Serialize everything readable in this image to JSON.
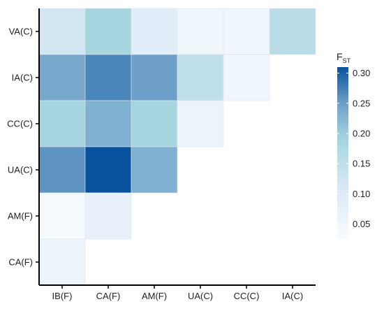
{
  "chart_data": {
    "type": "heatmap",
    "title": "",
    "xlabel": "",
    "ylabel": "",
    "x_categories": [
      "IB(F)",
      "CA(F)",
      "AM(F)",
      "UA(C)",
      "CC(C)",
      "IA(C)"
    ],
    "y_categories": [
      "VA(C)",
      "IA(C)",
      "CC(C)",
      "UA(C)",
      "AM(F)",
      "CA(F)"
    ],
    "cells": [
      {
        "x": "IB(F)",
        "y": "VA(C)",
        "value": 0.12
      },
      {
        "x": "CA(F)",
        "y": "VA(C)",
        "value": 0.19
      },
      {
        "x": "AM(F)",
        "y": "VA(C)",
        "value": 0.09
      },
      {
        "x": "UA(C)",
        "y": "VA(C)",
        "value": 0.05
      },
      {
        "x": "CC(C)",
        "y": "VA(C)",
        "value": 0.05
      },
      {
        "x": "IA(C)",
        "y": "VA(C)",
        "value": 0.16
      },
      {
        "x": "IB(F)",
        "y": "IA(C)",
        "value": 0.24
      },
      {
        "x": "CA(F)",
        "y": "IA(C)",
        "value": 0.27
      },
      {
        "x": "AM(F)",
        "y": "IA(C)",
        "value": 0.25
      },
      {
        "x": "UA(C)",
        "y": "IA(C)",
        "value": 0.15
      },
      {
        "x": "CC(C)",
        "y": "IA(C)",
        "value": 0.05
      },
      {
        "x": "IB(F)",
        "y": "CC(C)",
        "value": 0.19
      },
      {
        "x": "CA(F)",
        "y": "CC(C)",
        "value": 0.23
      },
      {
        "x": "AM(F)",
        "y": "CC(C)",
        "value": 0.19
      },
      {
        "x": "UA(C)",
        "y": "CC(C)",
        "value": 0.06
      },
      {
        "x": "IB(F)",
        "y": "UA(C)",
        "value": 0.26
      },
      {
        "x": "CA(F)",
        "y": "UA(C)",
        "value": 0.31
      },
      {
        "x": "AM(F)",
        "y": "UA(C)",
        "value": 0.23
      },
      {
        "x": "IB(F)",
        "y": "AM(F)",
        "value": 0.03
      },
      {
        "x": "CA(F)",
        "y": "AM(F)",
        "value": 0.07
      },
      {
        "x": "IB(F)",
        "y": "CA(F)",
        "value": 0.06
      }
    ],
    "legend": {
      "title_main": "F",
      "title_sub": "ST",
      "placement": "right",
      "ticks": [
        0.05,
        0.1,
        0.15,
        0.2,
        0.25,
        0.3
      ],
      "tick_labels": [
        "0.05",
        "0.10",
        "0.15",
        "0.20",
        "0.25",
        "0.30"
      ],
      "range": [
        0.025,
        0.31
      ]
    },
    "colors": {
      "low": "#f7fbff",
      "mid1": "#deebf7",
      "mid2": "#a6d5e0",
      "mid3": "#6e9fc8",
      "high": "#08519c"
    }
  }
}
